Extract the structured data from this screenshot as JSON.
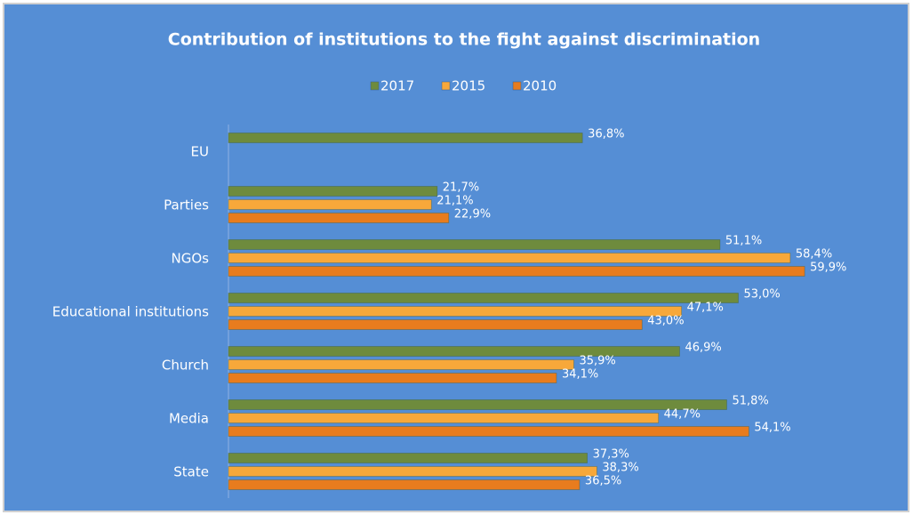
{
  "chart_data": {
    "type": "hbar",
    "title": "Contribution of institutions to the fight against discrimination",
    "categories": [
      "EU",
      "Parties",
      "NGOs",
      "Educational institutions",
      "Church",
      "Media",
      "State"
    ],
    "series": [
      {
        "name": "2017",
        "color": "#6e8b3d",
        "values": [
          36.8,
          21.7,
          51.1,
          53.0,
          46.9,
          51.8,
          37.3
        ],
        "value_labels": [
          "36,8%",
          "21,7%",
          "51,1%",
          "53,0%",
          "46,9%",
          "51,8%",
          "37,3%"
        ]
      },
      {
        "name": "2015",
        "color": "#f7a83a",
        "values": [
          null,
          21.1,
          58.4,
          47.1,
          35.9,
          44.7,
          38.3
        ],
        "value_labels": [
          null,
          "21,1%",
          "58,4%",
          "47,1%",
          "35,9%",
          "44,7%",
          "38,3%"
        ]
      },
      {
        "name": "2010",
        "color": "#e87c1e",
        "values": [
          null,
          22.9,
          59.9,
          43.0,
          34.1,
          54.1,
          36.5
        ],
        "value_labels": [
          null,
          "22,9%",
          "59,9%",
          "43,0%",
          "34,1%",
          "54,1%",
          "36,5%"
        ]
      }
    ],
    "legend": "top"
  }
}
